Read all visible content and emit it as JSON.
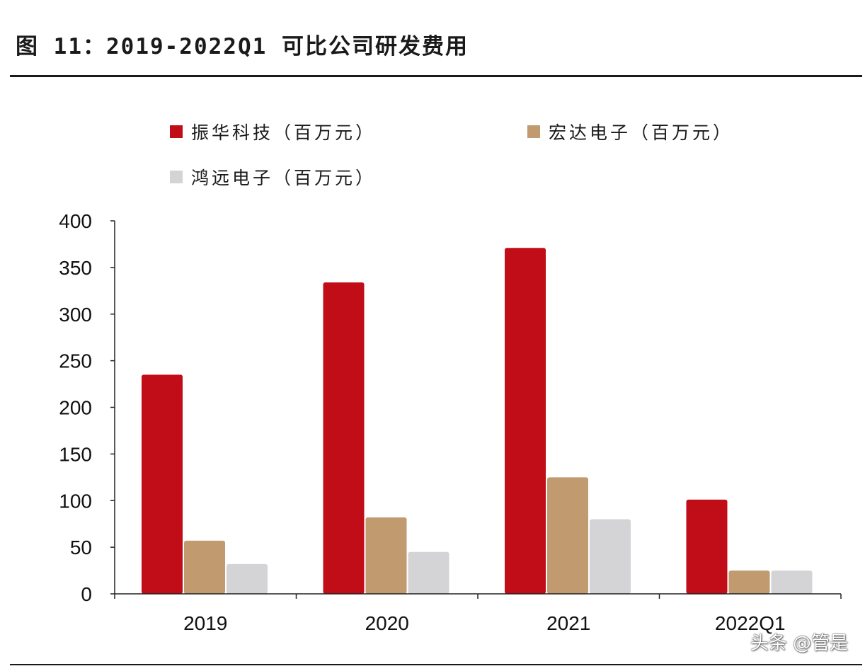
{
  "figure": {
    "title": "图 11：2019-2022Q1 可比公司研发费用",
    "watermark": "头条 @管是"
  },
  "colors": {
    "series1": "#c00d18",
    "series2": "#c19a70",
    "series3": "#d4d4d6",
    "axis": "#222222"
  },
  "chart_data": {
    "type": "bar",
    "title": "2019-2022Q1 可比公司研发费用",
    "xlabel": "",
    "ylabel": "",
    "categories": [
      "2019",
      "2020",
      "2021",
      "2022Q1"
    ],
    "ylim": [
      0,
      400
    ],
    "yticks": [
      "0",
      "50",
      "100",
      "150",
      "200",
      "250",
      "300",
      "350",
      "400"
    ],
    "grid": false,
    "legend_position": "top-left",
    "series": [
      {
        "name": "振华科技（百万元）",
        "values": [
          235,
          334,
          371,
          101
        ]
      },
      {
        "name": "宏达电子（百万元）",
        "values": [
          57,
          82,
          125,
          25
        ]
      },
      {
        "name": "鸿远电子（百万元）",
        "values": [
          32,
          45,
          80,
          25
        ]
      }
    ]
  }
}
